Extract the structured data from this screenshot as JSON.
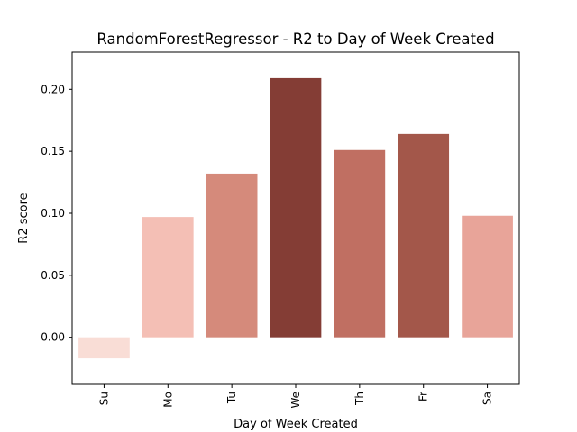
{
  "chart_data": {
    "type": "bar",
    "title": "RandomForestRegressor - R2 to Day of Week Created",
    "xlabel": "Day of Week Created",
    "ylabel": "R2 score",
    "categories": [
      "Su",
      "Mo",
      "Tu",
      "We",
      "Th",
      "Fr",
      "Sa"
    ],
    "values": [
      -0.017,
      0.097,
      0.132,
      0.209,
      0.151,
      0.164,
      0.098
    ],
    "colors": [
      "#f9ddd6",
      "#f4bfb5",
      "#d58a7b",
      "#843d35",
      "#c06f62",
      "#a3574a",
      "#e8a499"
    ],
    "ylim": [
      -0.038,
      0.23
    ],
    "yticks": [
      0.0,
      0.05,
      0.1,
      0.15,
      0.2
    ],
    "ytick_labels": [
      "0.00",
      "0.05",
      "0.10",
      "0.15",
      "0.20"
    ],
    "grid": false,
    "legend": false
  }
}
